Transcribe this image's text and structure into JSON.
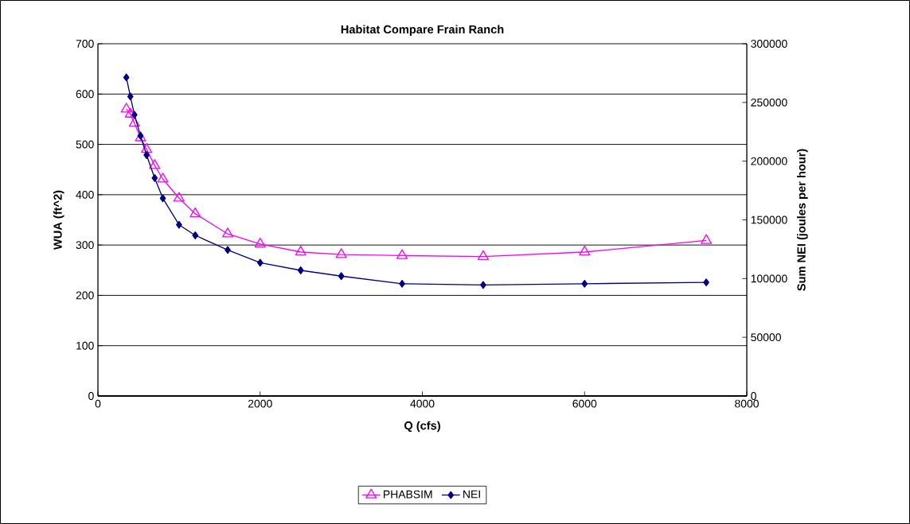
{
  "chart_data": {
    "type": "line",
    "title": "Habitat Compare Frain Ranch",
    "xlabel": "Q (cfs)",
    "ylabel": "WUA (ft^2)",
    "y2label": "Sum NEI (joules per hour)",
    "xlim": [
      0,
      8000
    ],
    "xticks": [
      0,
      2000,
      4000,
      6000,
      8000
    ],
    "ylim": [
      0,
      700
    ],
    "yticks": [
      0,
      100,
      200,
      300,
      400,
      500,
      600,
      700
    ],
    "y2lim": [
      0,
      300000
    ],
    "y2ticks": [
      0,
      50000,
      100000,
      150000,
      200000,
      250000,
      300000
    ],
    "grid": "y",
    "legend": "bottom",
    "series": [
      {
        "name": "PHABSIM",
        "color": "#ff00ff",
        "marker": "triangle",
        "x": [
          350,
          400,
          450,
          525,
          600,
          700,
          800,
          1000,
          1200,
          1600,
          2000,
          2500,
          3000,
          3750,
          4750,
          6000,
          7500
        ],
        "values": [
          570,
          560,
          542,
          513,
          490,
          458,
          431,
          393,
          362,
          322,
          302,
          286,
          281,
          279,
          277,
          286,
          309
        ]
      },
      {
        "name": "NEI",
        "color": "#000080",
        "marker": "diamond",
        "axis": "y2",
        "x": [
          350,
          400,
          450,
          525,
          600,
          700,
          800,
          1000,
          1200,
          1600,
          2000,
          2500,
          3000,
          3750,
          4750,
          6000,
          7500
        ],
        "values": [
          271300,
          255100,
          239500,
          221600,
          205200,
          185600,
          168400,
          145800,
          136800,
          124400,
          113500,
          107000,
          102100,
          95600,
          94500,
          95600,
          96700
        ]
      }
    ]
  }
}
